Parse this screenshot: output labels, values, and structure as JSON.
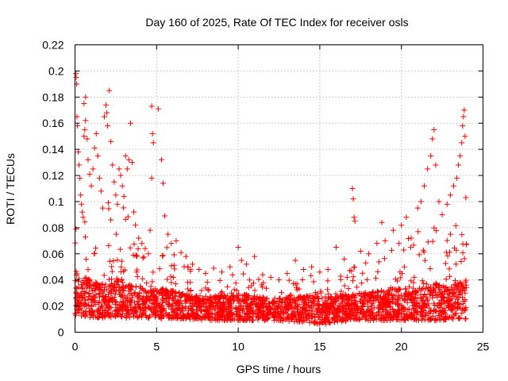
{
  "chart_data": {
    "type": "scatter",
    "title": "Day 160 of 2025, Rate Of TEC Index for receiver osls",
    "xlabel": "GPS time / hours",
    "ylabel": "ROTI / TECUs",
    "xlim": [
      0,
      25
    ],
    "ylim": [
      0,
      0.22
    ],
    "xticks": [
      0,
      5,
      10,
      15,
      20,
      25
    ],
    "xtick_labels": [
      "0",
      "5",
      "10",
      "15",
      "20",
      "25"
    ],
    "yticks": [
      0,
      0.02,
      0.04,
      0.06,
      0.08,
      0.1,
      0.12,
      0.14,
      0.16,
      0.18,
      0.2,
      0.22
    ],
    "ytick_labels": [
      "0",
      "0.02",
      "0.04",
      "0.06",
      "0.08",
      "0.1",
      "0.12",
      "0.14",
      "0.16",
      "0.18",
      "0.2",
      "0.22"
    ],
    "grid": true,
    "marker": "+",
    "series": [
      {
        "name": "ROTI",
        "color": "#ff0000",
        "points": [
          [
            0.05,
            0.198
          ],
          [
            0.07,
            0.195
          ],
          [
            0.1,
            0.19
          ],
          [
            0.12,
            0.165
          ],
          [
            0.15,
            0.158
          ],
          [
            0.2,
            0.138
          ],
          [
            0.25,
            0.128
          ],
          [
            0.3,
            0.118
          ],
          [
            0.35,
            0.105
          ],
          [
            0.4,
            0.098
          ],
          [
            0.45,
            0.092
          ],
          [
            0.5,
            0.088
          ],
          [
            0.55,
            0.15
          ],
          [
            0.6,
            0.155
          ],
          [
            0.65,
            0.162
          ],
          [
            0.55,
            0.175
          ],
          [
            0.65,
            0.18
          ],
          [
            0.75,
            0.148
          ],
          [
            0.8,
            0.132
          ],
          [
            0.9,
            0.121
          ],
          [
            1.0,
            0.112
          ],
          [
            1.1,
            0.125
          ],
          [
            1.2,
            0.141
          ],
          [
            1.3,
            0.152
          ],
          [
            1.4,
            0.135
          ],
          [
            1.5,
            0.118
          ],
          [
            1.6,
            0.108
          ],
          [
            1.7,
            0.095
          ],
          [
            1.8,
            0.165
          ],
          [
            1.9,
            0.174
          ],
          [
            1.95,
            0.168
          ],
          [
            2.0,
            0.158
          ],
          [
            2.1,
            0.185
          ],
          [
            2.2,
            0.146
          ],
          [
            2.3,
            0.128
          ],
          [
            2.4,
            0.115
          ],
          [
            2.5,
            0.105
          ],
          [
            2.6,
            0.098
          ],
          [
            2.7,
            0.125
          ],
          [
            2.8,
            0.12
          ],
          [
            2.9,
            0.112
          ],
          [
            3.0,
            0.104
          ],
          [
            3.1,
            0.135
          ],
          [
            3.2,
            0.125
          ],
          [
            3.3,
            0.132
          ],
          [
            3.4,
            0.16
          ],
          [
            3.5,
            0.13
          ],
          [
            3.6,
            0.092
          ],
          [
            3.7,
            0.082
          ],
          [
            3.9,
            0.072
          ],
          [
            4.1,
            0.068
          ],
          [
            4.3,
            0.064
          ],
          [
            4.5,
            0.06
          ],
          [
            4.6,
            0.078
          ],
          [
            4.7,
            0.173
          ],
          [
            4.75,
            0.152
          ],
          [
            4.8,
            0.145
          ],
          [
            4.7,
            0.118
          ],
          [
            5.1,
            0.171
          ],
          [
            5.3,
            0.132
          ],
          [
            5.4,
            0.114
          ],
          [
            5.5,
            0.089
          ],
          [
            5.7,
            0.075
          ],
          [
            5.9,
            0.068
          ],
          [
            6.2,
            0.07
          ],
          [
            6.5,
            0.061
          ],
          [
            6.8,
            0.058
          ],
          [
            7.2,
            0.052
          ],
          [
            7.6,
            0.048
          ],
          [
            8.0,
            0.045
          ],
          [
            8.5,
            0.049
          ],
          [
            9.0,
            0.046
          ],
          [
            9.5,
            0.05
          ],
          [
            10.0,
            0.065
          ],
          [
            10.2,
            0.055
          ],
          [
            10.5,
            0.052
          ],
          [
            11.0,
            0.058
          ],
          [
            11.5,
            0.044
          ],
          [
            12.0,
            0.042
          ],
          [
            12.5,
            0.04
          ],
          [
            13.0,
            0.045
          ],
          [
            13.5,
            0.055
          ],
          [
            14.0,
            0.048
          ],
          [
            14.5,
            0.05
          ],
          [
            15.0,
            0.046
          ],
          [
            15.5,
            0.048
          ],
          [
            16.0,
            0.065
          ],
          [
            16.5,
            0.056
          ],
          [
            17.0,
            0.11
          ],
          [
            17.05,
            0.102
          ],
          [
            17.1,
            0.088
          ],
          [
            17.15,
            0.085
          ],
          [
            17.5,
            0.062
          ],
          [
            18.0,
            0.06
          ],
          [
            18.5,
            0.068
          ],
          [
            18.8,
            0.084
          ],
          [
            19.0,
            0.07
          ],
          [
            19.5,
            0.078
          ],
          [
            20.0,
            0.082
          ],
          [
            20.3,
            0.088
          ],
          [
            20.6,
            0.072
          ],
          [
            21.0,
            0.095
          ],
          [
            21.2,
            0.1
          ],
          [
            21.4,
            0.112
          ],
          [
            21.6,
            0.125
          ],
          [
            21.8,
            0.135
          ],
          [
            21.9,
            0.148
          ],
          [
            22.0,
            0.155
          ],
          [
            22.1,
            0.128
          ],
          [
            22.3,
            0.1
          ],
          [
            22.5,
            0.09
          ],
          [
            22.8,
            0.098
          ],
          [
            23.0,
            0.105
          ],
          [
            23.2,
            0.112
          ],
          [
            23.4,
            0.118
          ],
          [
            23.5,
            0.128
          ],
          [
            23.6,
            0.135
          ],
          [
            23.7,
            0.145
          ],
          [
            23.75,
            0.158
          ],
          [
            23.8,
            0.165
          ],
          [
            23.85,
            0.17
          ],
          [
            23.9,
            0.15
          ],
          [
            23.95,
            0.103
          ]
        ],
        "envelope": {
          "x": [
            0,
            0.5,
            1,
            1.5,
            2,
            2.5,
            3,
            3.5,
            4,
            4.5,
            5,
            5.5,
            6,
            6.5,
            7,
            7.5,
            8,
            8.5,
            9,
            9.5,
            10,
            10.5,
            11,
            11.5,
            12,
            12.5,
            13,
            13.5,
            14,
            14.5,
            15,
            15.5,
            16,
            16.5,
            17,
            17.5,
            18,
            18.5,
            19,
            19.5,
            20,
            20.5,
            21,
            21.5,
            22,
            22.5,
            23,
            23.5,
            24
          ],
          "upper": [
            0.13,
            0.11,
            0.1,
            0.09,
            0.1,
            0.11,
            0.1,
            0.08,
            0.07,
            0.06,
            0.07,
            0.07,
            0.06,
            0.055,
            0.05,
            0.045,
            0.045,
            0.042,
            0.042,
            0.045,
            0.05,
            0.048,
            0.045,
            0.04,
            0.036,
            0.035,
            0.04,
            0.042,
            0.042,
            0.044,
            0.042,
            0.04,
            0.044,
            0.048,
            0.05,
            0.05,
            0.055,
            0.06,
            0.06,
            0.065,
            0.07,
            0.075,
            0.08,
            0.09,
            0.085,
            0.075,
            0.08,
            0.09,
            0.095
          ],
          "lower": [
            0.012,
            0.012,
            0.011,
            0.011,
            0.011,
            0.011,
            0.011,
            0.011,
            0.011,
            0.01,
            0.01,
            0.01,
            0.01,
            0.01,
            0.01,
            0.01,
            0.009,
            0.009,
            0.009,
            0.009,
            0.009,
            0.009,
            0.009,
            0.009,
            0.009,
            0.009,
            0.008,
            0.008,
            0.008,
            0.007,
            0.006,
            0.006,
            0.007,
            0.008,
            0.009,
            0.009,
            0.009,
            0.009,
            0.009,
            0.009,
            0.009,
            0.009,
            0.009,
            0.009,
            0.009,
            0.009,
            0.01,
            0.01,
            0.01
          ],
          "dense_upper": [
            0.045,
            0.042,
            0.04,
            0.038,
            0.04,
            0.042,
            0.04,
            0.036,
            0.034,
            0.032,
            0.034,
            0.034,
            0.032,
            0.03,
            0.029,
            0.028,
            0.028,
            0.028,
            0.028,
            0.028,
            0.03,
            0.029,
            0.028,
            0.027,
            0.026,
            0.026,
            0.027,
            0.028,
            0.028,
            0.028,
            0.028,
            0.027,
            0.028,
            0.029,
            0.03,
            0.03,
            0.031,
            0.032,
            0.032,
            0.033,
            0.034,
            0.035,
            0.036,
            0.038,
            0.038,
            0.036,
            0.036,
            0.038,
            0.04
          ]
        }
      }
    ]
  }
}
